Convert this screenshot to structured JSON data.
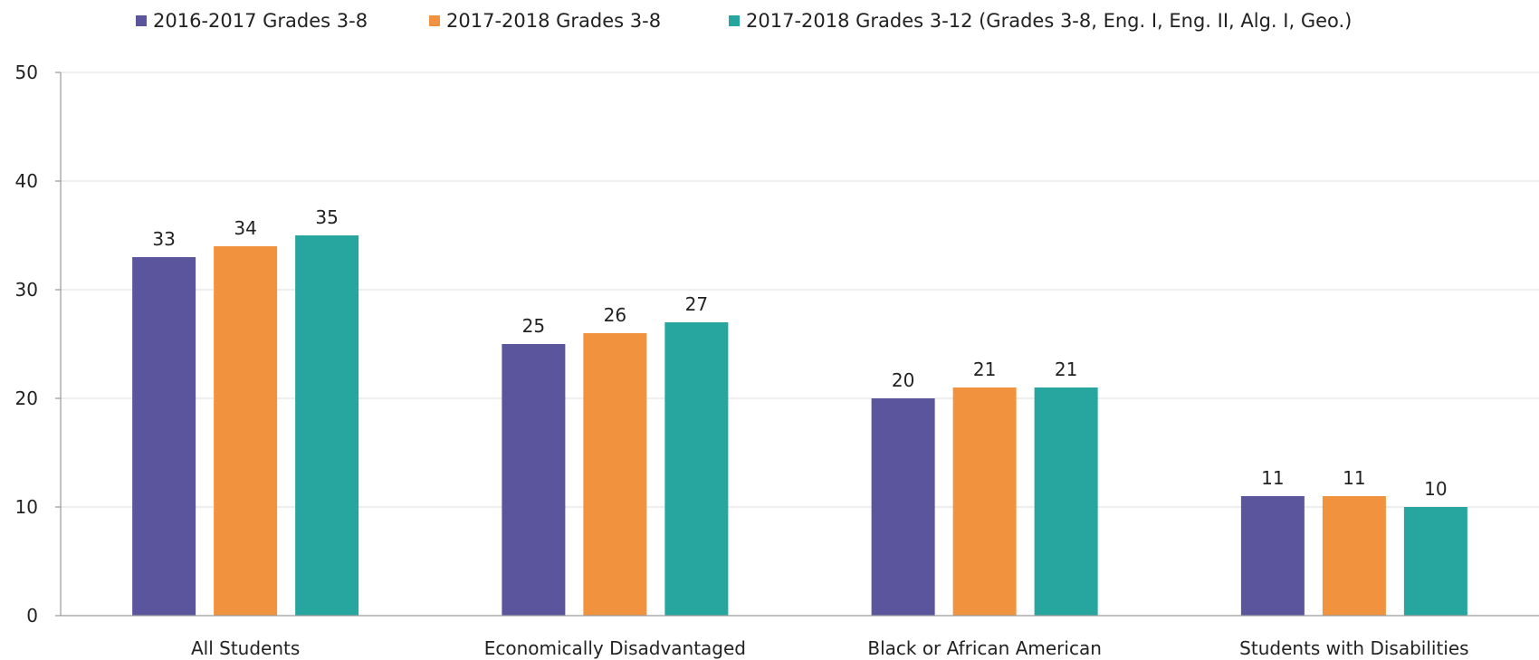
{
  "chart_data": {
    "type": "bar",
    "title": "",
    "xlabel": "",
    "ylabel": "",
    "ylim": [
      0,
      50
    ],
    "yticks": [
      0,
      10,
      20,
      30,
      40,
      50
    ],
    "grid": true,
    "legend_position": "top",
    "categories": [
      "All Students",
      "Economically Disadvantaged",
      "Black or African American",
      "Students with Disabilities"
    ],
    "series": [
      {
        "name": "2016-2017 Grades 3-8",
        "color": "#5b559e",
        "values": [
          33,
          25,
          20,
          11
        ]
      },
      {
        "name": "2017-2018 Grades 3-8",
        "color": "#f0923e",
        "values": [
          34,
          26,
          21,
          11
        ]
      },
      {
        "name": "2017-2018 Grades 3-12 (Grades 3-8, Eng. I, Eng. II, Alg. I, Geo.)",
        "color": "#26a69e",
        "values": [
          35,
          27,
          21,
          10
        ]
      }
    ]
  }
}
